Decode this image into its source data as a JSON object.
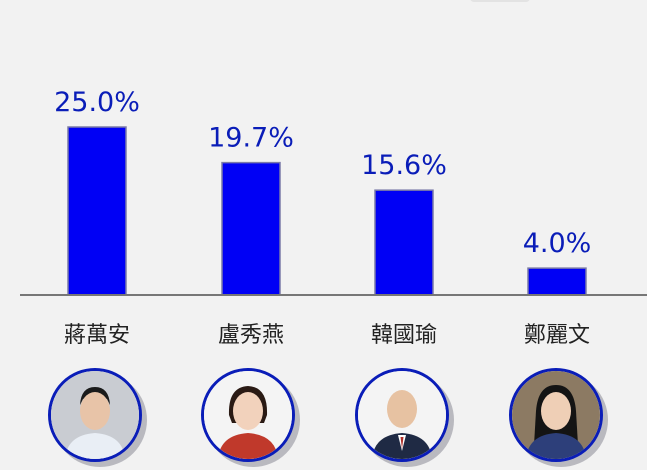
{
  "chart_data": {
    "type": "bar",
    "categories": [
      "蔣萬安",
      "盧秀燕",
      "韓國瑜",
      "鄭麗文"
    ],
    "values": [
      25.0,
      19.7,
      15.6,
      4.0
    ],
    "value_labels": [
      "25.0%",
      "19.7%",
      "15.6%",
      "4.0%"
    ],
    "title": "",
    "xlabel": "",
    "ylabel": "",
    "ylim": [
      0,
      30
    ],
    "grid": false,
    "legend": "none",
    "colors": {
      "bar": "#0000f5",
      "bar_edge": "#7a7aa8",
      "value_label": "#0a1db8",
      "axis": "#777777",
      "category_label": "#222222",
      "background": "#f2f2f2"
    }
  },
  "avatars": [
    {
      "icon": "portrait-man-short-hair",
      "face": "#e8c4a8",
      "hair": "#1b1b1b",
      "clothes": "#e9eef5",
      "bg": "#c9ccd2"
    },
    {
      "icon": "portrait-woman-bob",
      "face": "#f2d2bc",
      "hair": "#2a1a14",
      "clothes": "#c0392b",
      "bg": "#f4f4f4"
    },
    {
      "icon": "portrait-man-bald-suit",
      "face": "#e7c2a2",
      "hair": "#e7c2a2",
      "clothes": "#1f2a44",
      "bg": "#f4f4f4"
    },
    {
      "icon": "portrait-woman-long-hair",
      "face": "#efcfb6",
      "hair": "#141414",
      "clothes": "#2d3f7a",
      "bg": "#8c7a63"
    }
  ]
}
